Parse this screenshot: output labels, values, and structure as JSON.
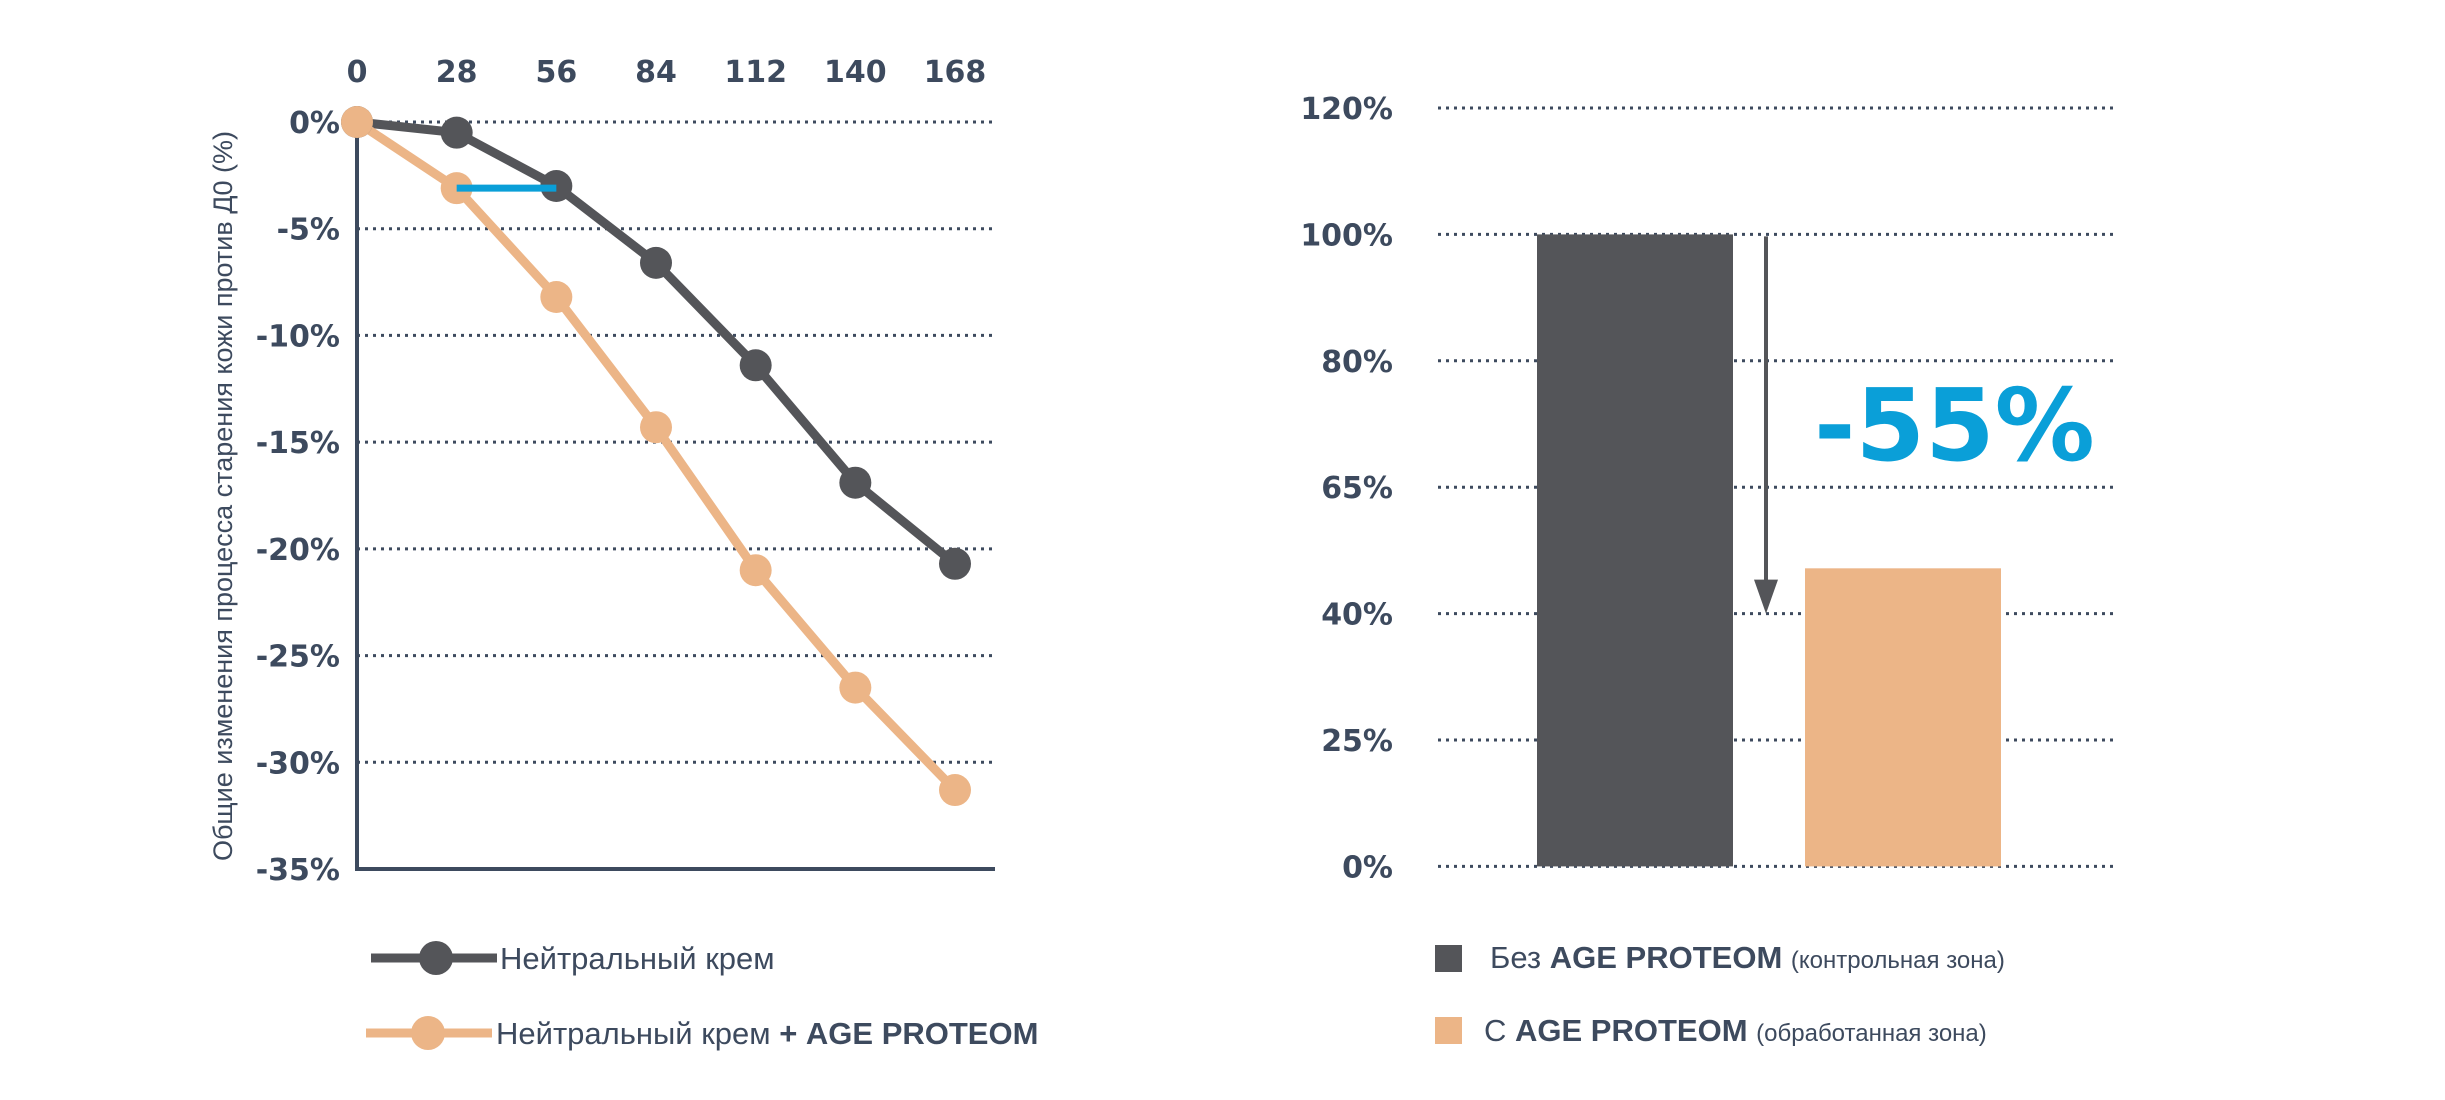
{
  "chart_data": [
    {
      "type": "line",
      "title": "",
      "xlabel": "",
      "ylabel": "Общие изменения процесса старения кожи против Д0 (%)",
      "x": [
        0,
        28,
        56,
        84,
        112,
        140,
        168
      ],
      "x_tick_labels": [
        "0",
        "28",
        "56",
        "84",
        "112",
        "140",
        "168"
      ],
      "y_ticks": [
        0,
        -5,
        -10,
        -15,
        -20,
        -25,
        -30,
        -35
      ],
      "y_tick_labels": [
        "0%",
        "-5%",
        "-10%",
        "-15%",
        "-20%",
        "-25%",
        "-30%",
        "-35%"
      ],
      "ylim": [
        -35,
        0
      ],
      "xaxis_position": "top",
      "grid": "horizontal dotted",
      "series": [
        {
          "name": "Нейтральный крем",
          "name_bold": "",
          "color": "#545559",
          "values": [
            0,
            -0.5,
            -3.0,
            -6.6,
            -11.4,
            -16.9,
            -20.7
          ]
        },
        {
          "name": "Нейтральный крем",
          "name_bold": "+ AGE PROTEOM",
          "color": "#ecb587",
          "values": [
            0,
            -3.1,
            -8.2,
            -14.3,
            -21.0,
            -26.5,
            -31.3
          ]
        }
      ],
      "annotation_segment": {
        "color": "#0a9fd8",
        "x": [
          28,
          56
        ],
        "y": -3.1
      },
      "legend": "bottom"
    },
    {
      "type": "bar",
      "y_tick_labels": [
        "120%",
        "100%",
        "80%",
        "65%",
        "40%",
        "25%",
        "0%"
      ],
      "y_tick_values": [
        120,
        100,
        80,
        65,
        40,
        25,
        0
      ],
      "grid": "horizontal dotted",
      "categories": [
        "Без AGE PROTEOM (контрольная зона)",
        "С AGE PROTEOM (обработанная зона)"
      ],
      "values": [
        100,
        45
      ],
      "colors": [
        "#545559",
        "#ecb587"
      ],
      "annotation": "-55%",
      "annotation_color": "#0a9fd8",
      "legend": [
        {
          "prefix": "Без",
          "bold": "AGE PROTEOM",
          "suffix": "(контрольная зона)"
        },
        {
          "prefix": "С",
          "bold": "AGE PROTEOM",
          "suffix": "(обработанная зона)"
        }
      ]
    }
  ]
}
